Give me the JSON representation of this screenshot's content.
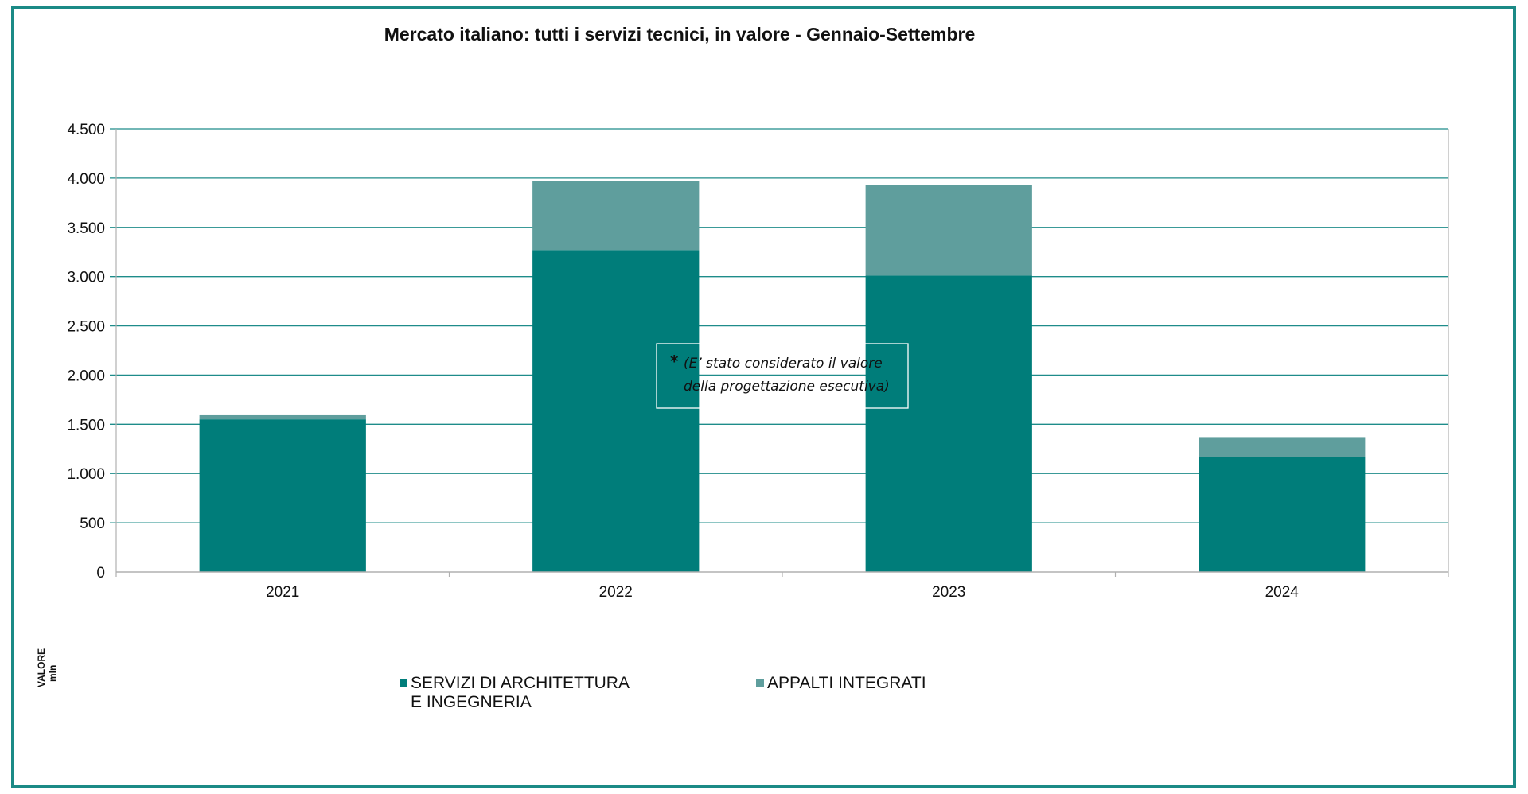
{
  "chart_data": {
    "type": "bar",
    "stacked": true,
    "title": "Mercato italiano: tutti i servizi tecnici, in valore - Gennaio-Settembre",
    "ylabel": "VALORE",
    "yunit": "mln",
    "categories": [
      "2021",
      "2022",
      "2023",
      "2024"
    ],
    "ylim": [
      0,
      4500
    ],
    "yticks": [
      0,
      500,
      1000,
      1500,
      2000,
      2500,
      3000,
      3500,
      4000,
      4500
    ],
    "ytick_labels": [
      "0",
      "500",
      "1.000",
      "1.500",
      "2.000",
      "2.500",
      "3.000",
      "3.500",
      "4.000",
      "4.500"
    ],
    "grid": true,
    "legend_position": "bottom",
    "series": [
      {
        "name": "SERVIZI DI ARCHITETTURA E INGEGNERIA",
        "name_lines": [
          "SERVIZI DI ARCHITETTURA",
          "E INGEGNERIA"
        ],
        "color": "#007d7a",
        "values": [
          1550,
          3270,
          3010,
          1170
        ]
      },
      {
        "name": "APPALTI INTEGRATI",
        "name_lines": [
          "APPALTI INTEGRATI"
        ],
        "color": "#5f9e9d",
        "values": [
          50,
          700,
          920,
          200
        ]
      }
    ],
    "annotation": {
      "marker": "*",
      "lines": [
        "(E’ stato considerato il valore",
        "della progettazione esecutiva)"
      ]
    }
  },
  "colors": {
    "frame": "#1b8a86",
    "gridline": "#1e8c8a",
    "axis": "#b0b0b0"
  }
}
